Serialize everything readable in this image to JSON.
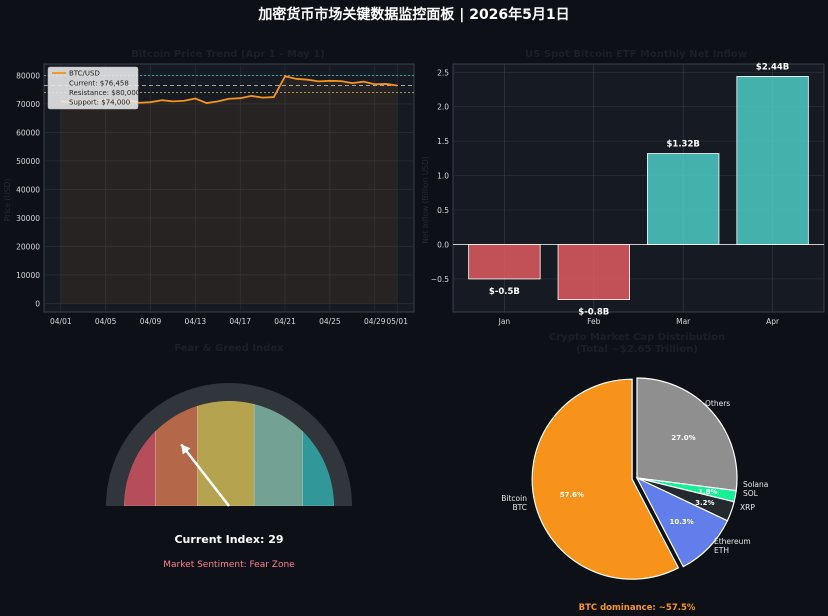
{
  "page": {
    "title": "加密货币市场关键数据监控面板 | 2026年5月1日"
  },
  "chart_data": [
    {
      "type": "line",
      "title": "Bitcoin Price Trend (Apr 1 - May 1)",
      "xlabel": "",
      "ylabel": "Price (USD)",
      "ylim": [
        -3000,
        84000
      ],
      "yticks": [
        0,
        10000,
        20000,
        30000,
        40000,
        50000,
        60000,
        70000,
        80000
      ],
      "xticks": [
        "04/01",
        "04/05",
        "04/09",
        "04/13",
        "04/17",
        "04/21",
        "04/25",
        "04/29",
        "05/01"
      ],
      "xtick_days": [
        0,
        4,
        8,
        12,
        16,
        20,
        24,
        28,
        30
      ],
      "grid": true,
      "legend_position": "top-left",
      "series": [
        {
          "name": "BTC/USD",
          "color": "#f7931a",
          "x": [
            0,
            1,
            2,
            3,
            4,
            5,
            6,
            7,
            8,
            9,
            10,
            11,
            12,
            13,
            14,
            15,
            16,
            17,
            18,
            19,
            20,
            21,
            22,
            23,
            24,
            25,
            26,
            27,
            28,
            29,
            30
          ],
          "values": [
            71000,
            70500,
            71200,
            70800,
            71500,
            70900,
            71400,
            70400,
            70600,
            71300,
            70900,
            71100,
            71900,
            70300,
            70900,
            71800,
            72000,
            72800,
            72200,
            72400,
            79700,
            78800,
            78500,
            77900,
            78100,
            78000,
            77300,
            77800,
            76900,
            77000,
            76458
          ]
        }
      ],
      "legend": {
        "series_label": "BTC/USD",
        "current": "Current: $76,458",
        "resistance": "Resistance: $80,000",
        "support": "Support: $74,000"
      },
      "resistance": 80000,
      "support": 74000,
      "current": 76458
    },
    {
      "type": "bar",
      "title": "US Spot Bitcoin ETF Monthly Net Inflow",
      "xlabel": "",
      "ylabel": "Net Inflow (Billion USD)",
      "categories": [
        "Jan",
        "Feb",
        "Mar",
        "Apr"
      ],
      "values": [
        -0.5,
        -0.8,
        1.32,
        2.44
      ],
      "labels": [
        "$-0.5B",
        "$-0.8B",
        "$1.32B",
        "$2.44B"
      ],
      "ylim": [
        -0.98,
        2.62
      ],
      "yticks": [
        -0.5,
        0.0,
        0.5,
        1.0,
        1.5,
        2.0,
        2.5
      ],
      "ytick_labels": [
        "−0.5",
        "0.0",
        "0.5",
        "1.0",
        "1.5",
        "2.0",
        "2.5"
      ],
      "grid": true,
      "colors": {
        "negative": "#e05a60",
        "positive": "#4ecdc4"
      }
    },
    {
      "type": "gauge",
      "title": "Fear & Greed Index",
      "value": 29,
      "range": [
        0,
        100
      ],
      "bands": [
        {
          "from": 0,
          "to": 15,
          "color": "#c95462"
        },
        {
          "from": 15,
          "to": 35,
          "color": "#c6714f"
        },
        {
          "from": 35,
          "to": 62,
          "color": "#c9b457"
        },
        {
          "from": 62,
          "to": 85,
          "color": "#7eb3a3"
        },
        {
          "from": 85,
          "to": 100,
          "color": "#36a6a6"
        }
      ],
      "index_label": "Current Index: 29",
      "sentiment_label": "Market Sentiment: Fear Zone"
    },
    {
      "type": "pie",
      "title": "Crypto Market Cap Distribution",
      "subtitle": "(Total ~$2.65 Trillion)",
      "slices": [
        {
          "label": "Others",
          "value": 27.0,
          "pct_label": "27.0%",
          "color": "#8f8f8f"
        },
        {
          "label": "Solana\nSOL",
          "value": 1.8,
          "pct_label": "1.8%",
          "color": "#14f195"
        },
        {
          "label": "XRP",
          "value": 3.2,
          "pct_label": "3.2%",
          "color": "#23292f"
        },
        {
          "label": "Ethereum\nETH",
          "value": 10.3,
          "pct_label": "10.3%",
          "color": "#627eea"
        },
        {
          "label": "Bitcoin\nBTC",
          "value": 57.6,
          "pct_label": "57.6%",
          "color": "#f7931a"
        }
      ],
      "footnote": "BTC dominance: ~57.5%"
    }
  ]
}
